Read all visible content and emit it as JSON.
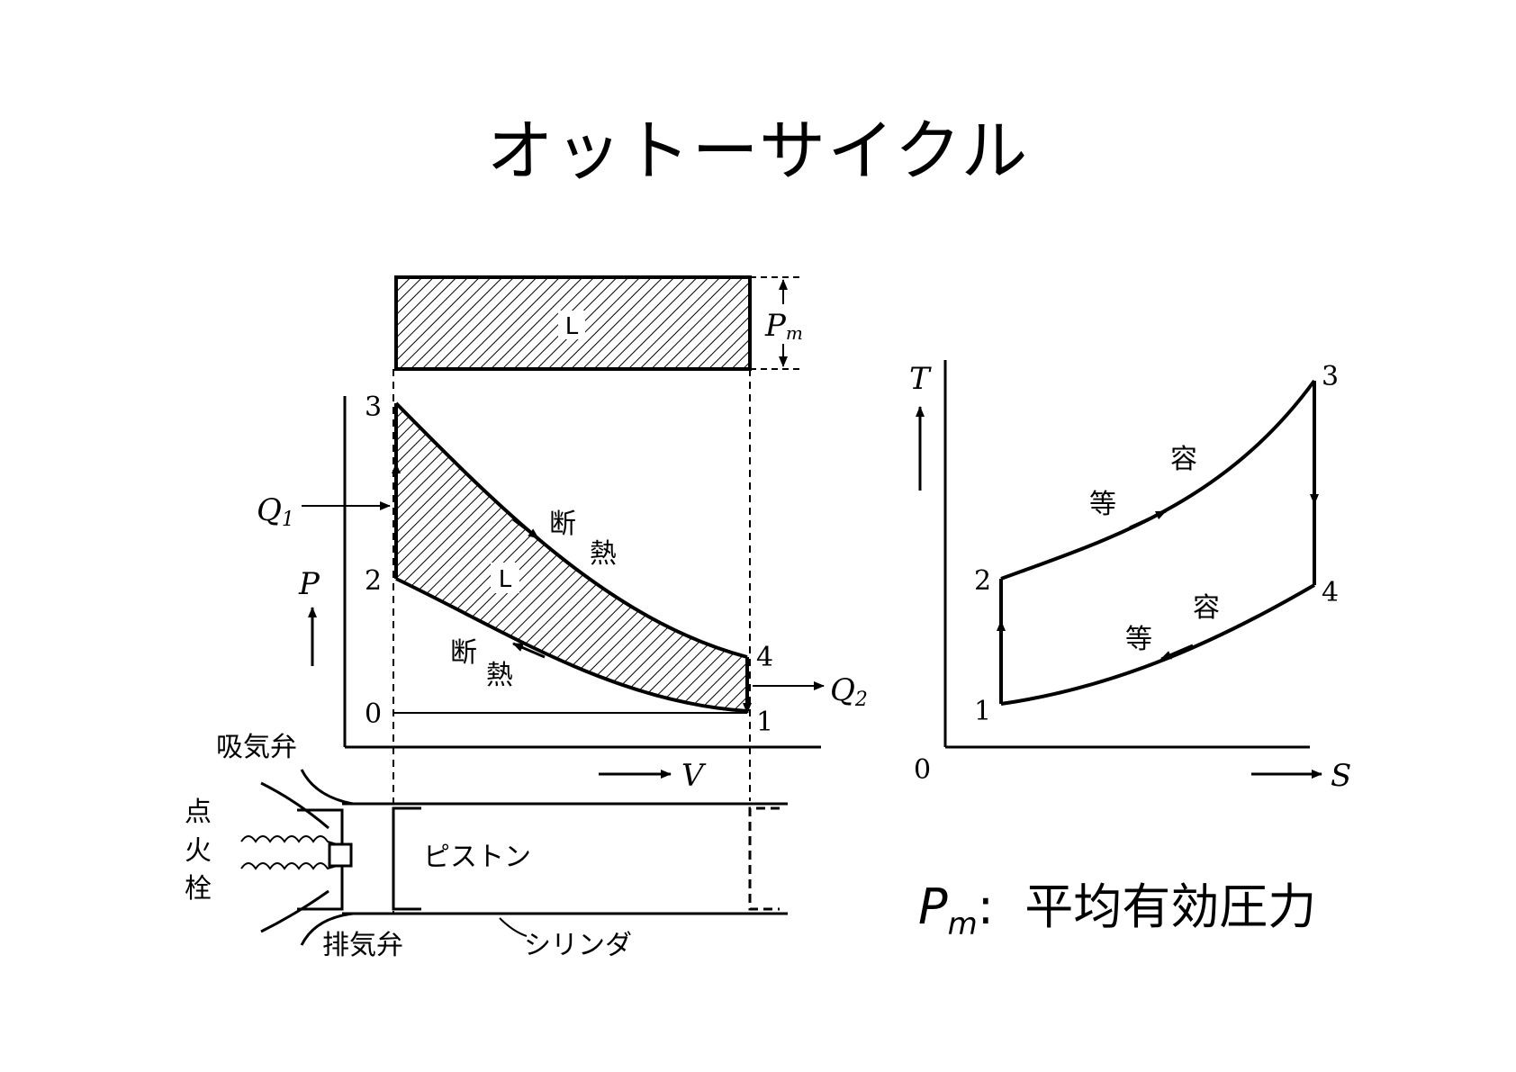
{
  "title": "オットーサイクル",
  "pv": {
    "area_label": "L",
    "pm_label": "P",
    "pm_sub": "m",
    "q1": "Q",
    "q1_sub": "1",
    "q2": "Q",
    "q2_sub": "2",
    "p_axis": "P",
    "v_axis": "V",
    "pt0": "0",
    "pt1": "1",
    "pt2": "2",
    "pt3": "3",
    "pt4": "4",
    "adiabatic_a": "断",
    "adiabatic_b": "熱",
    "intake_valve": "吸気弁",
    "spark_1": "点",
    "spark_2": "火",
    "spark_3": "栓",
    "piston": "ピストン",
    "exhaust_valve": "排気弁",
    "cylinder": "シリンダ"
  },
  "ts": {
    "t_axis": "T",
    "s_axis": "S",
    "origin": "0",
    "pt1": "1",
    "pt2": "2",
    "pt3": "3",
    "pt4": "4",
    "isochoric_a": "等",
    "isochoric_b": "容"
  },
  "legend": {
    "symbol": "P",
    "sub": "m",
    "colon": ":",
    "text": "平均有効圧力"
  }
}
